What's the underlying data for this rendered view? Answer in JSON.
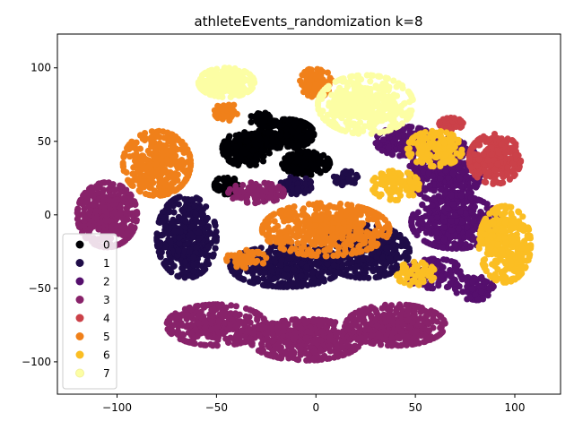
{
  "chart_data": {
    "type": "scatter",
    "title": "athleteEvents_randomization k=8",
    "xlabel": "",
    "ylabel": "",
    "xlim": [
      -130,
      123
    ],
    "ylim": [
      -122,
      123
    ],
    "xticks": [
      -100,
      -50,
      0,
      50,
      100
    ],
    "yticks": [
      -100,
      -50,
      0,
      50,
      100
    ],
    "xtick_labels": [
      "−100",
      "−50",
      "0",
      "50",
      "100"
    ],
    "ytick_labels": [
      "−100",
      "−50",
      "0",
      "50",
      "100"
    ],
    "grid": false,
    "legend_position": "center-left",
    "series": [
      {
        "name": "0",
        "color": "#000004",
        "clusters": [
          [
            -35,
            45,
            12,
            12,
            220
          ],
          [
            -15,
            55,
            14,
            10,
            240
          ],
          [
            -5,
            35,
            12,
            8,
            160
          ],
          [
            -45,
            20,
            6,
            6,
            50
          ],
          [
            -28,
            65,
            5,
            5,
            40
          ]
        ]
      },
      {
        "name": "1",
        "color": "#1f0c48",
        "clusters": [
          [
            -65,
            -15,
            15,
            28,
            420
          ],
          [
            -15,
            -35,
            28,
            14,
            420
          ],
          [
            25,
            -25,
            22,
            18,
            380
          ],
          [
            -10,
            20,
            8,
            6,
            60
          ],
          [
            15,
            25,
            6,
            5,
            40
          ]
        ]
      },
      {
        "name": "2",
        "color": "#550f6d",
        "clusters": [
          [
            65,
            30,
            18,
            22,
            420
          ],
          [
            70,
            -5,
            22,
            18,
            380
          ],
          [
            60,
            -40,
            15,
            10,
            120
          ],
          [
            45,
            50,
            15,
            10,
            140
          ],
          [
            80,
            -50,
            10,
            8,
            70
          ]
        ]
      },
      {
        "name": "3",
        "color": "#88226a",
        "clusters": [
          [
            -105,
            0,
            15,
            22,
            380
          ],
          [
            -50,
            -75,
            25,
            14,
            330
          ],
          [
            -5,
            -85,
            28,
            14,
            420
          ],
          [
            40,
            -75,
            25,
            14,
            380
          ],
          [
            -30,
            15,
            14,
            7,
            90
          ]
        ]
      },
      {
        "name": "4",
        "color": "#cb4149",
        "clusters": [
          [
            90,
            38,
            13,
            17,
            280
          ],
          [
            68,
            62,
            6,
            4,
            60
          ]
        ]
      },
      {
        "name": "5",
        "color": "#f0801a",
        "clusters": [
          [
            -80,
            35,
            17,
            22,
            330
          ],
          [
            5,
            -10,
            32,
            18,
            480
          ],
          [
            -45,
            70,
            6,
            6,
            50
          ],
          [
            0,
            90,
            8,
            10,
            90
          ],
          [
            -35,
            -30,
            10,
            6,
            50
          ]
        ]
      },
      {
        "name": "6",
        "color": "#fbbe23",
        "clusters": [
          [
            95,
            -20,
            13,
            26,
            340
          ],
          [
            60,
            45,
            14,
            12,
            160
          ],
          [
            40,
            20,
            12,
            10,
            100
          ],
          [
            50,
            -40,
            10,
            8,
            70
          ]
        ]
      },
      {
        "name": "7",
        "color": "#fcfea4",
        "clusters": [
          [
            -45,
            90,
            14,
            10,
            220
          ],
          [
            25,
            75,
            24,
            20,
            420
          ]
        ]
      }
    ]
  }
}
